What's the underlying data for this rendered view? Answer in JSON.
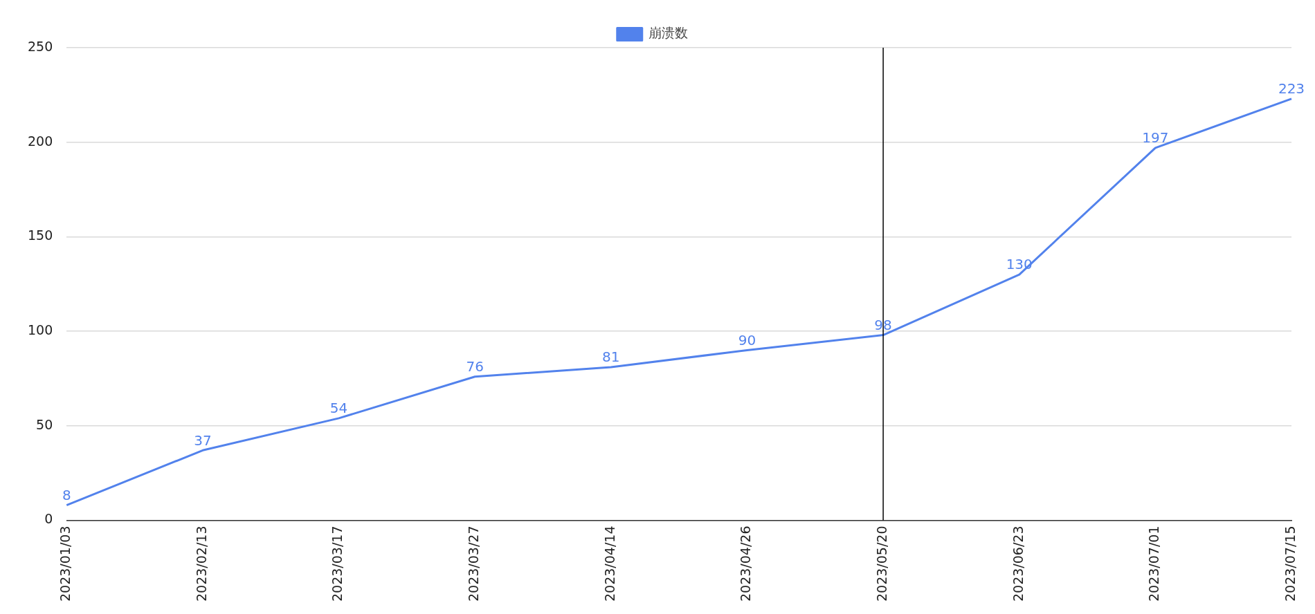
{
  "chart_data": {
    "type": "line",
    "categories": [
      "2023/01/03",
      "2023/02/13",
      "2023/03/17",
      "2023/03/27",
      "2023/04/14",
      "2023/04/26",
      "2023/05/20",
      "2023/06/23",
      "2023/07/01",
      "2023/07/15"
    ],
    "series": [
      {
        "name": "崩溃数",
        "color": "#5282ec",
        "values": [
          8,
          37,
          54,
          76,
          81,
          90,
          98,
          130,
          197,
          223
        ]
      }
    ],
    "ylim": [
      0,
      250
    ],
    "yticks": [
      0,
      50,
      100,
      150,
      200,
      250
    ],
    "grid": "y",
    "legend": "top",
    "data_labels": true,
    "marker": "none",
    "line_style": "solid",
    "ref_lines": [
      {
        "axis": "x",
        "value": "2023/05/20",
        "color": "#000000"
      }
    ]
  }
}
